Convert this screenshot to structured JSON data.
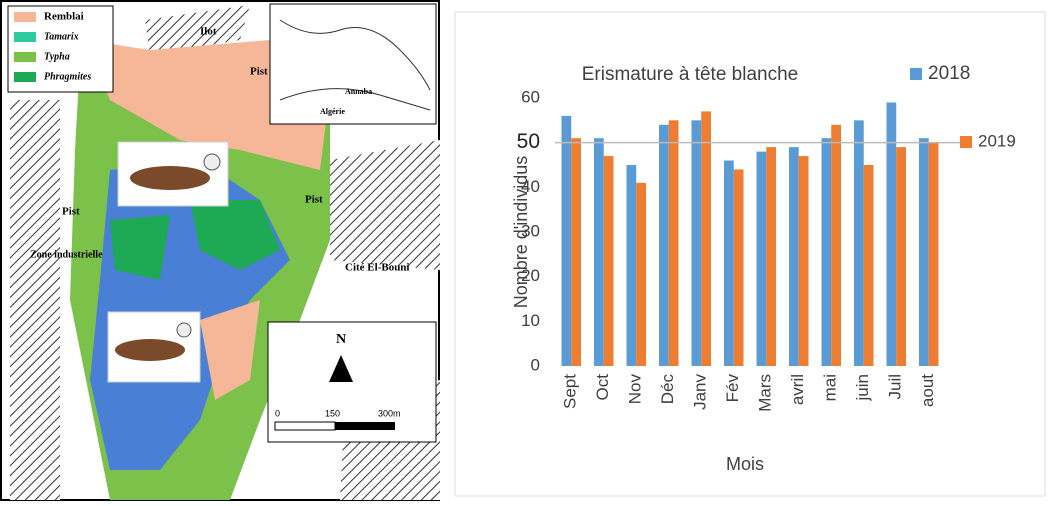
{
  "chart_data": {
    "type": "bar",
    "title": "Erismature à tête blanche",
    "x_label": "Mois",
    "y_label": "Nombre d'individus",
    "categories": [
      "Sept",
      "Oct",
      "Nov",
      "Déc",
      "Janv",
      "Fév",
      "Mars",
      "avril",
      "mai",
      "juin",
      "Juil",
      "aout"
    ],
    "series": [
      {
        "name": "2018",
        "color": "#5b9bd5",
        "values": [
          56,
          51,
          45,
          54,
          55,
          46,
          48,
          49,
          51,
          55,
          59,
          51
        ]
      },
      {
        "name": "2019",
        "color": "#ed7d31",
        "values": [
          51,
          47,
          41,
          55,
          57,
          44,
          49,
          47,
          54,
          45,
          49,
          50
        ]
      }
    ],
    "ylim": [
      0,
      60
    ],
    "yticks": [
      0,
      10,
      20,
      30,
      40,
      50,
      60
    ],
    "reference_line": 50
  },
  "map": {
    "legend": [
      "Remblai",
      "Tamarix",
      "Typha",
      "Phragmites"
    ],
    "labels": {
      "ilot": "Ilot",
      "pist": "Pist",
      "zone": "Zone industrielle",
      "cite": "Cité El-Bouni",
      "north": "N",
      "annaba": "Annaba",
      "algerie": "Algérie"
    },
    "scale": [
      "0",
      "150",
      "300m"
    ]
  }
}
